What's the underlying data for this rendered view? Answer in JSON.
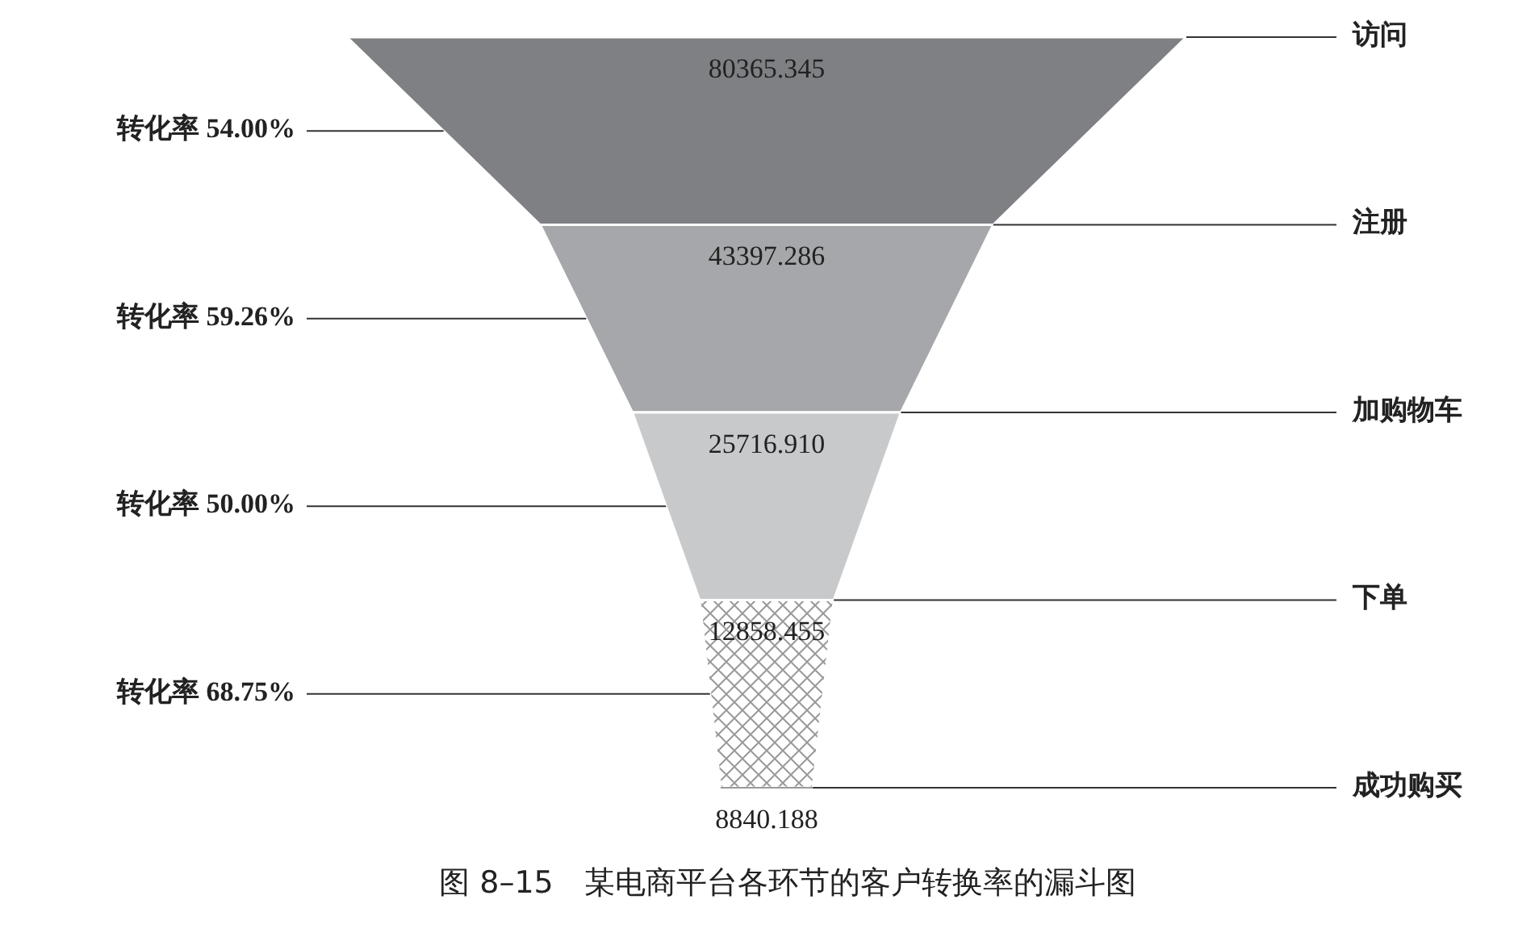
{
  "chart_data": {
    "type": "other",
    "title": "图 8–15　某电商平台各环节的客户转换率的漏斗图",
    "categories": [
      "访问",
      "注册",
      "加购物车",
      "下单",
      "成功购买"
    ],
    "values": [
      80365.345,
      43397.286,
      25716.91,
      12858.455,
      8840.188
    ],
    "value_labels": [
      "80365.345",
      "43397.286",
      "25716.910",
      "12858.455",
      "8840.188"
    ],
    "colors": [
      "#7f8084",
      "#a6a7aa",
      "#c8c9cb",
      "#ffffff",
      "#9a9a9a"
    ],
    "annotations": [
      "转化率 54.00%",
      "转化率 59.26%",
      "转化率 50.00%",
      "转化率 68.75%"
    ]
  }
}
